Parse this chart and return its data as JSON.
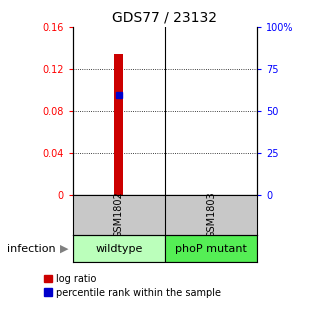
{
  "title": "GDS77 / 23132",
  "ylim_left": [
    0,
    0.16
  ],
  "ylim_right": [
    0,
    100
  ],
  "yticks_left": [
    0,
    0.04,
    0.08,
    0.12,
    0.16
  ],
  "ytick_labels_left": [
    "0",
    "0.04",
    "0.08",
    "0.12",
    "0.16"
  ],
  "yticks_right": [
    0,
    25,
    50,
    75,
    100
  ],
  "ytick_labels_right": [
    "0",
    "25",
    "50",
    "75",
    "100%"
  ],
  "samples": [
    "GSM1802",
    "GSM1803"
  ],
  "log_ratio_gsm1802": 0.134,
  "percentile_rank_gsm1802": 0.095,
  "bar_color": "#cc0000",
  "percentile_color": "#0000cc",
  "sample_label_bg": "#c8c8c8",
  "group_labels": [
    "wildtype",
    "phoP mutant"
  ],
  "group_color_left": "#bbffbb",
  "group_color_right": "#55ee55",
  "infection_label": "infection",
  "legend_log_ratio": "log ratio",
  "legend_percentile": "percentile rank within the sample"
}
